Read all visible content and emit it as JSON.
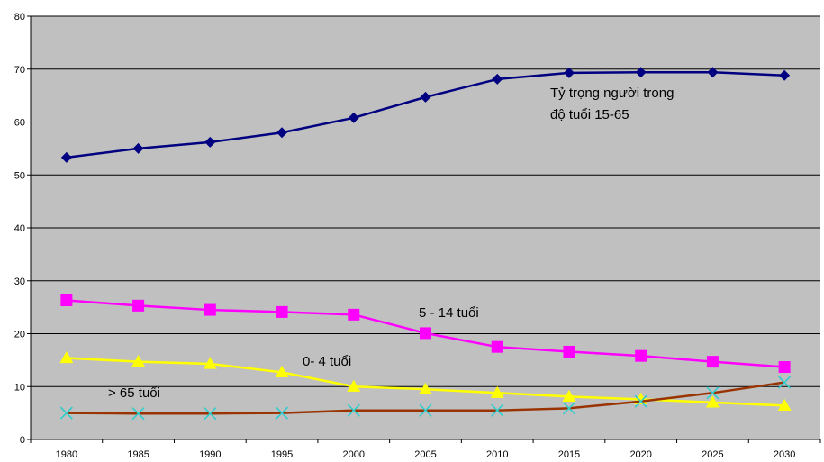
{
  "chart_data": {
    "type": "line",
    "x": [
      "1980",
      "1985",
      "1990",
      "1995",
      "2000",
      "2005",
      "2010",
      "2015",
      "2020",
      "2025",
      "2030"
    ],
    "ylim": [
      0,
      80
    ],
    "yticks": [
      0,
      10,
      20,
      30,
      40,
      50,
      60,
      70,
      80
    ],
    "grid": "horizontal",
    "legend": "none",
    "plot_background": "#c0c0c0",
    "series": [
      {
        "key": "working-age",
        "color": "#000080",
        "marker": "diamond",
        "values": [
          53.3,
          55.0,
          56.2,
          58.0,
          60.8,
          64.7,
          68.1,
          69.3,
          69.4,
          69.4,
          68.8
        ]
      },
      {
        "key": "age-5-14",
        "color": "#ff00ff",
        "marker": "square",
        "values": [
          26.3,
          25.3,
          24.5,
          24.1,
          23.6,
          20.1,
          17.5,
          16.6,
          15.8,
          14.7,
          13.7
        ]
      },
      {
        "key": "age-0-4",
        "color": "#ffff00",
        "marker": "triangle",
        "values": [
          15.4,
          14.7,
          14.3,
          12.7,
          10.0,
          9.5,
          8.8,
          8.1,
          7.6,
          7.0,
          6.4
        ]
      },
      {
        "key": "age-65-plus",
        "color": "#993300",
        "marker": "x",
        "marker_color": "#33cccc",
        "values": [
          5.0,
          4.9,
          4.9,
          5.0,
          5.5,
          5.5,
          5.5,
          5.9,
          7.2,
          8.8,
          10.8
        ]
      }
    ],
    "annotations": [
      {
        "key": "working-age",
        "lines": [
          "Tỷ trọng người trong",
          "độ tuổi 15-65"
        ]
      },
      {
        "key": "age-5-14",
        "lines": [
          "5 - 14 tuổi"
        ]
      },
      {
        "key": "age-0-4",
        "lines": [
          "0- 4 tuổi"
        ]
      },
      {
        "key": "age-65-plus",
        "lines": [
          "> 65 tuổi"
        ]
      }
    ]
  }
}
